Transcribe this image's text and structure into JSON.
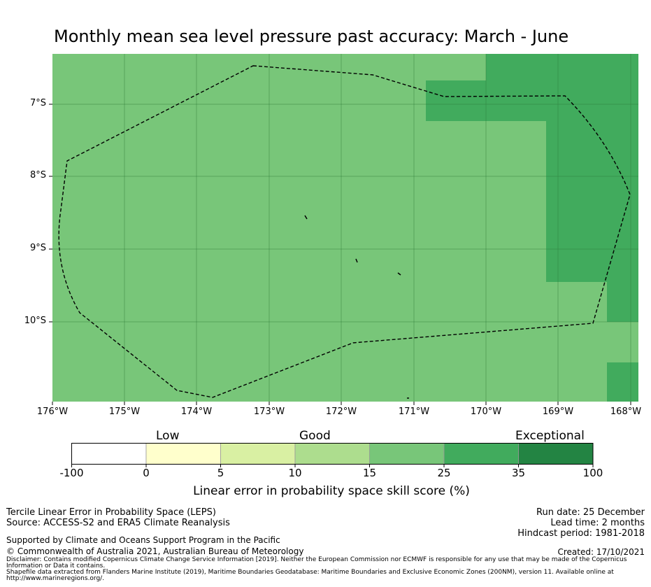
{
  "title": "Monthly mean sea level pressure past accuracy: March - June",
  "map": {
    "lat_labels": [
      "7°S",
      "8°S",
      "9°S",
      "10°S"
    ],
    "lon_labels": [
      "176°W",
      "175°W",
      "174°W",
      "173°W",
      "172°W",
      "171°W",
      "170°W",
      "169°W",
      "168°W"
    ],
    "lat_range": [
      -11.1,
      -6.3
    ],
    "lon_range": [
      -176,
      -167.9
    ],
    "base_color": "#78c679",
    "high_color": "#41ab5d"
  },
  "colorbar": {
    "categories": [
      "Low",
      "Good",
      "Exceptional"
    ],
    "ticks": [
      "-100",
      "0",
      "5",
      "10",
      "15",
      "25",
      "35",
      "100"
    ],
    "colors": [
      "#ffffff",
      "#ffffcc",
      "#d9f0a3",
      "#addd8e",
      "#78c679",
      "#41ab5d",
      "#238443"
    ],
    "title": "Linear error in probability space skill score (%)"
  },
  "footer": {
    "line1": "Tercile Linear Error in Probability Space (LEPS)",
    "line2": "Source: ACCESS-S2 and ERA5 Climate Reanalysis",
    "supported": "Supported by Climate and Oceans Support Program in the Pacific",
    "copyright": "© Commonwealth of Australia 2021, Australian Bureau of Meteorology",
    "disclaimer": "Disclaimer: Contains modified Copernicus Climate Change Service Information [2019]. Neither the European Commission nor ECMWF is responsible for any use that may be made of the Copernicus Information or Data it contains.",
    "shapefile": "Shapefile data extracted from Flanders Marine Institute (2019), Maritime Boundaries Geodatabase: Maritime Boundaries and Exclusive Economic Zones (200NM), version 11. Available online at http://www.marineregions.org/.",
    "run_date": "Run date: 25 December",
    "lead_time": "Lead time: 2 months",
    "hindcast": "Hindcast period: 1981-2018",
    "created": "Created: 17/10/2021"
  }
}
